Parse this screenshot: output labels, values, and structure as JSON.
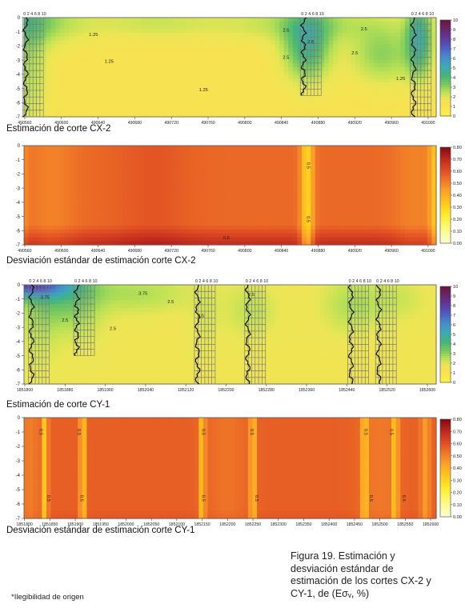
{
  "figure": {
    "caption_lines": [
      "Figura 19. Estimación y",
      "desviación estándar de",
      "estimación de los cortes CX-2 y",
      "CY-1, de (Eσᵥ, %)"
    ],
    "footnote": "*Ilegibilidad de origen"
  },
  "chart_data": [
    {
      "type": "heatmap",
      "title": "Estimación de corte CX-2",
      "x_ticks": [
        "490560",
        "490600",
        "490640",
        "490680",
        "490720",
        "490760",
        "490800",
        "490840",
        "490880",
        "490920",
        "490960",
        "491000"
      ],
      "y_ticks": [
        "0",
        "-1",
        "-2",
        "-3",
        "-4",
        "-5",
        "-6",
        "-7"
      ],
      "ylim": [
        -7,
        0
      ],
      "colorbar": {
        "min": 0,
        "max": 10,
        "ticks": [
          "10",
          "9",
          "8",
          "7",
          "6",
          "5",
          "4",
          "3",
          "2",
          "1",
          "0"
        ]
      },
      "boreholes": [
        {
          "x": 490562,
          "depth": 7
        },
        {
          "x": 490865,
          "depth": 5.5
        },
        {
          "x": 490985,
          "depth": 7
        }
      ],
      "grid_header_labels": [
        "0 2 4 6 8 10",
        "0 2 4 6 8 10",
        "0 2 4 6 8 10"
      ],
      "contour_labels": [
        {
          "text": "1.25",
          "x": 490635,
          "y": -1.3
        },
        {
          "text": "1.25",
          "x": 490652,
          "y": -3.2
        },
        {
          "text": "1.25",
          "x": 490755,
          "y": -5.2
        },
        {
          "text": "2.5",
          "x": 490845,
          "y": -1.0
        },
        {
          "text": "2.5",
          "x": 490930,
          "y": -0.9
        },
        {
          "text": "2.5",
          "x": 490845,
          "y": -2.9
        },
        {
          "text": "2.5",
          "x": 490920,
          "y": -2.6
        },
        {
          "text": "2.5",
          "x": 490872,
          "y": -1.8
        },
        {
          "text": "1.25",
          "x": 490970,
          "y": -4.4
        }
      ],
      "field": {
        "background": 1.3,
        "sources": [
          {
            "x": 490565,
            "y": -3.0,
            "v": 2.6,
            "sx": 20,
            "sy": 5
          },
          {
            "x": 490565,
            "y": -0.3,
            "v": 3.2,
            "sx": 55,
            "sy": 1.6
          },
          {
            "x": 490700,
            "y": -0.4,
            "v": 2.2,
            "sx": 70,
            "sy": 1.1
          },
          {
            "x": 490868,
            "y": -2.0,
            "v": 4.4,
            "sx": 25,
            "sy": 2.4
          },
          {
            "x": 490868,
            "y": -0.4,
            "v": 2.6,
            "sx": 90,
            "sy": 1.3
          },
          {
            "x": 490950,
            "y": -2.6,
            "v": 3.0,
            "sx": 35,
            "sy": 2.0
          },
          {
            "x": 490990,
            "y": -1.5,
            "v": 4.6,
            "sx": 14,
            "sy": 2.6
          }
        ]
      }
    },
    {
      "type": "heatmap",
      "title": "Desviación estándar de estimación corte CX-2",
      "x_ticks": [
        "490560",
        "490600",
        "490640",
        "490680",
        "490720",
        "490760",
        "490800",
        "490840",
        "490880",
        "490920",
        "490960",
        "491000"
      ],
      "y_ticks": [
        "0",
        "-1",
        "-2",
        "-3",
        "-4",
        "-5",
        "-6",
        "-7"
      ],
      "ylim": [
        -7,
        0
      ],
      "colorbar": {
        "min": 0,
        "max": 0.8,
        "ticks": [
          "0.80",
          "0.70",
          "0.60",
          "0.50",
          "0.40",
          "0.30",
          "0.20",
          "0.10",
          "0.00"
        ]
      },
      "contour_labels": [
        {
          "text": "0.5",
          "x": 490868,
          "y": -1.4
        },
        {
          "text": "0.5",
          "x": 490868,
          "y": -5.2
        },
        {
          "text": "0.6",
          "x": 490780,
          "y": -6.6
        }
      ],
      "field": {
        "background": 0.55,
        "vcols": [
          {
            "x": 490868,
            "v": -0.25,
            "s": 7
          },
          {
            "x": 490550,
            "v": -0.18,
            "s": 10
          },
          {
            "x": 491010,
            "v": -0.22,
            "s": 8
          },
          {
            "x": 490590,
            "v": -0.05,
            "s": 25
          },
          {
            "x": 490985,
            "v": -0.05,
            "s": 22
          },
          {
            "x": 490700,
            "v": 0.04,
            "s": 40
          }
        ],
        "bottom_bump": {
          "v": 0.13,
          "y0": -5.6
        }
      }
    },
    {
      "type": "heatmap",
      "title": "Estimación de corte CY-1",
      "x_ticks": [
        "1851800",
        "1851880",
        "1851960",
        "1852040",
        "1852120",
        "1852200",
        "1852280",
        "1852360",
        "1852440",
        "1852520",
        "1852600"
      ],
      "y_ticks": [
        "0",
        "-1",
        "-2",
        "-3",
        "-4",
        "-5",
        "-6",
        "-7"
      ],
      "ylim": [
        -7,
        0
      ],
      "colorbar": {
        "min": 0,
        "max": 10,
        "ticks": [
          "10",
          "9",
          "8",
          "7",
          "6",
          "5",
          "4",
          "3",
          "2",
          "1",
          "0"
        ]
      },
      "boreholes": [
        {
          "x": 1851815,
          "depth": 7
        },
        {
          "x": 1851905,
          "depth": 5
        },
        {
          "x": 1852145,
          "depth": 7
        },
        {
          "x": 1852245,
          "depth": 7
        },
        {
          "x": 1852450,
          "depth": 7
        },
        {
          "x": 1852505,
          "depth": 7
        }
      ],
      "grid_header_labels": [
        "0 2 4 6 8 10",
        "0 2 4 6 8 10",
        "0 2 4 6 8 10",
        "0 2 4 6 8 10",
        "0 2 4 6 8 10",
        "0 2 4 6 8 10"
      ],
      "contour_labels": [
        {
          "text": "3.75",
          "x": 1851840,
          "y": -1.0
        },
        {
          "text": "2.5",
          "x": 1851880,
          "y": -2.6
        },
        {
          "text": "3.75",
          "x": 1852035,
          "y": -0.7
        },
        {
          "text": "2.5",
          "x": 1852090,
          "y": -1.3
        },
        {
          "text": "2.5",
          "x": 1851975,
          "y": -3.2
        },
        {
          "text": "2.5",
          "x": 1852150,
          "y": -2.3
        },
        {
          "text": "2.5",
          "x": 1852250,
          "y": -0.8
        }
      ],
      "field": {
        "background": 1.6,
        "sources": [
          {
            "x": 1851800,
            "y": 0.0,
            "v": 7.0,
            "sx": 90,
            "sy": 0.9
          },
          {
            "x": 1851870,
            "y": -0.9,
            "v": 3.2,
            "sx": 70,
            "sy": 2.2
          },
          {
            "x": 1852020,
            "y": -0.6,
            "v": 2.6,
            "sx": 110,
            "sy": 1.4
          },
          {
            "x": 1851830,
            "y": -3.0,
            "v": 2.2,
            "sx": 40,
            "sy": 3.5
          },
          {
            "x": 1851920,
            "y": -2.4,
            "v": 2.0,
            "sx": 40,
            "sy": 2.5
          },
          {
            "x": 1852160,
            "y": -2.2,
            "v": 2.0,
            "sx": 30,
            "sy": 2.5
          },
          {
            "x": 1852250,
            "y": -1.8,
            "v": 2.4,
            "sx": 50,
            "sy": 2.0
          },
          {
            "x": 1852450,
            "y": -1.4,
            "v": 2.6,
            "sx": 60,
            "sy": 2.0
          },
          {
            "x": 1852540,
            "y": -1.0,
            "v": 2.2,
            "sx": 60,
            "sy": 1.6
          }
        ]
      }
    },
    {
      "type": "heatmap",
      "title": "Desviación estándar de estimación corte CY-1",
      "x_ticks": [
        "1851800",
        "1851850",
        "1851900",
        "1851950",
        "1852000",
        "1852050",
        "1852100",
        "1852150",
        "1852200",
        "1852250",
        "1852300",
        "1852350",
        "1852400",
        "1852450",
        "1852500",
        "1852550",
        "1852600"
      ],
      "y_ticks": [
        "0",
        "-1",
        "-2",
        "-3",
        "-4",
        "-5",
        "-6",
        "-7"
      ],
      "ylim": [
        -7,
        0
      ],
      "colorbar": {
        "min": 0,
        "max": 0.8,
        "ticks": [
          "0.80",
          "0.70",
          "0.60",
          "0.50",
          "0.40",
          "0.30",
          "0.20",
          "0.10",
          "0.00"
        ]
      },
      "contour_labels": [
        {
          "text": "0.5",
          "x": 1851830,
          "y": -1.0
        },
        {
          "text": "0.5",
          "x": 1851905,
          "y": -1.0
        },
        {
          "text": "0.5",
          "x": 1852150,
          "y": -1.0
        },
        {
          "text": "0.5",
          "x": 1852245,
          "y": -1.0
        },
        {
          "text": "0.5",
          "x": 1852470,
          "y": -1.0
        },
        {
          "text": "0.5",
          "x": 1852520,
          "y": -1.0
        },
        {
          "text": "0.5",
          "x": 1851845,
          "y": -5.6
        },
        {
          "text": "0.5",
          "x": 1851910,
          "y": -5.6
        },
        {
          "text": "0.5",
          "x": 1852150,
          "y": -5.6
        },
        {
          "text": "0.5",
          "x": 1852255,
          "y": -5.6
        },
        {
          "text": "0.5",
          "x": 1852480,
          "y": -5.6
        },
        {
          "text": "0.5",
          "x": 1852545,
          "y": -5.6
        }
      ],
      "field": {
        "background": 0.57,
        "vcols": [
          {
            "x": 1851840,
            "v": -0.24,
            "s": 6
          },
          {
            "x": 1851915,
            "v": -0.24,
            "s": 6
          },
          {
            "x": 1852150,
            "v": -0.22,
            "s": 6
          },
          {
            "x": 1852250,
            "v": -0.22,
            "s": 6
          },
          {
            "x": 1852470,
            "v": -0.24,
            "s": 6
          },
          {
            "x": 1852530,
            "v": -0.22,
            "s": 6
          },
          {
            "x": 1851810,
            "v": -0.06,
            "s": 18
          },
          {
            "x": 1852200,
            "v": -0.04,
            "s": 40
          },
          {
            "x": 1852500,
            "v": -0.05,
            "s": 40
          },
          {
            "x": 1852590,
            "v": -0.12,
            "s": 10
          }
        ],
        "bottom_bump": {
          "v": 0.03,
          "y0": -6.3
        }
      }
    }
  ]
}
